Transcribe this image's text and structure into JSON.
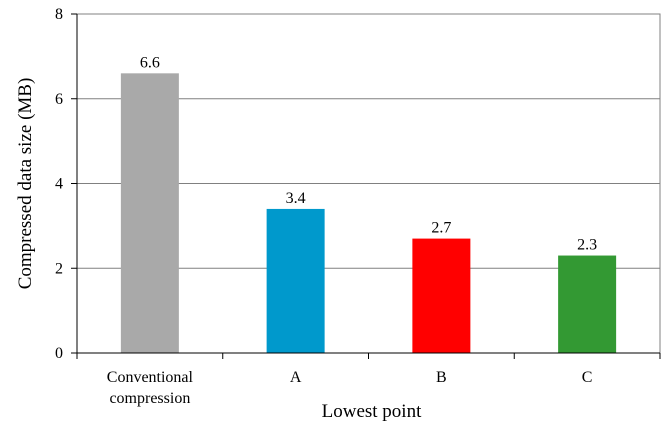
{
  "chart_data": {
    "type": "bar",
    "categories": [
      [
        "Conventional",
        "compression"
      ],
      [
        "A"
      ],
      [
        "B"
      ],
      [
        "C"
      ]
    ],
    "values": [
      6.6,
      3.4,
      2.7,
      2.3
    ],
    "data_labels": [
      "6.6",
      "3.4",
      "2.7",
      "2.3"
    ],
    "bar_colors": [
      "#a9a9a9",
      "#0099cc",
      "#ff0000",
      "#339933"
    ],
    "xlabel": "Lowest point",
    "ylabel": "Compressed data  size (MB)",
    "ylim": [
      0,
      8
    ],
    "yticks": [
      0,
      2,
      4,
      6,
      8
    ],
    "grid": true,
    "legend": "none"
  }
}
